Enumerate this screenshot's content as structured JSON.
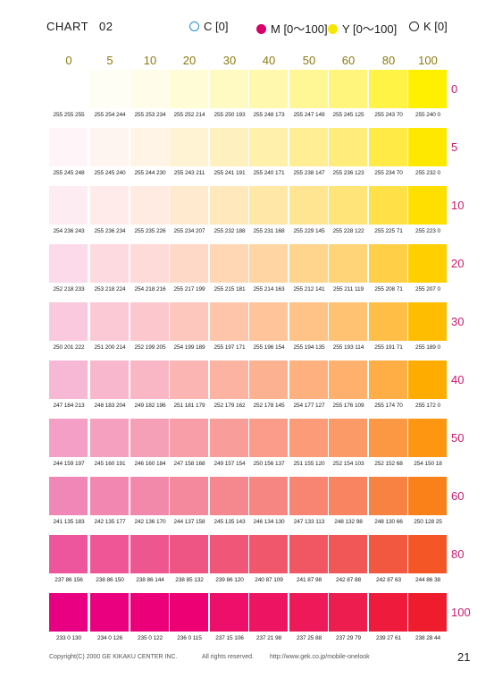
{
  "header": {
    "chart_label": "CHART",
    "chart_number": "02",
    "legend": [
      {
        "name": "cyan",
        "label": "C [0]",
        "color": "#1e8fd8",
        "filled": false
      },
      {
        "name": "magenta",
        "label": "M [0〜100]",
        "color": "#d9006c",
        "filled": true
      },
      {
        "name": "yellow",
        "label": "Y [0〜100]",
        "color": "#f7e600",
        "filled": true
      },
      {
        "name": "black",
        "label": "K [0]",
        "color": "#222222",
        "filled": false
      }
    ]
  },
  "columns": [
    "0",
    "5",
    "10",
    "20",
    "30",
    "40",
    "50",
    "60",
    "80",
    "100"
  ],
  "rows": [
    {
      "label": "0",
      "cells": [
        "255 255 255",
        "255 254 244",
        "255 253 234",
        "255 252 214",
        "255 250 193",
        "255 248 173",
        "255 247 149",
        "255 245 125",
        "255 243 70",
        "255 240 0"
      ]
    },
    {
      "label": "5",
      "cells": [
        "255 245 248",
        "255 245 240",
        "255 244 230",
        "255 243 211",
        "255 241 191",
        "255 240 171",
        "255 238 147",
        "255 236 123",
        "255 234 70",
        "255 232 0"
      ]
    },
    {
      "label": "10",
      "cells": [
        "254 236 243",
        "255 236 234",
        "255 235 226",
        "255 234 207",
        "255 232 188",
        "255 231 168",
        "255 229 145",
        "255 228 122",
        "255 225 71",
        "255 223 0"
      ]
    },
    {
      "label": "20",
      "cells": [
        "252 218 233",
        "253 218 224",
        "254 218 216",
        "255 217 199",
        "255 215 181",
        "255 214 163",
        "255 212 141",
        "255 211 119",
        "255 208 71",
        "255 207 0"
      ]
    },
    {
      "label": "30",
      "cells": [
        "250 201 222",
        "251 200 214",
        "252 199 205",
        "254 199 189",
        "255 197 171",
        "255 196 154",
        "255 194 135",
        "255 193 114",
        "255 191 71",
        "255 189 0"
      ]
    },
    {
      "label": "40",
      "cells": [
        "247 184 213",
        "248 183 204",
        "249 182 196",
        "251 181 179",
        "252 179 162",
        "252 178 145",
        "254 177 127",
        "255 176 109",
        "255 174 70",
        "255 172 0"
      ]
    },
    {
      "label": "50",
      "cells": [
        "244 159 197",
        "245 160 191",
        "246 160 184",
        "247 158 168",
        "249 157 154",
        "250 156 137",
        "251 155 120",
        "252 154 103",
        "252 152 68",
        "254 150 18"
      ]
    },
    {
      "label": "60",
      "cells": [
        "241 135 183",
        "242 135 177",
        "242 136 170",
        "244 137 158",
        "245 135 143",
        "246 134 130",
        "247 133 113",
        "248 132 98",
        "248 130 66",
        "250 128 25"
      ]
    },
    {
      "label": "80",
      "cells": [
        "237 86 156",
        "238 86 150",
        "238 86 144",
        "238 85 132",
        "239 86 120",
        "240 87 109",
        "241 87 98",
        "242 87 88",
        "242 87 63",
        "244 86 38"
      ]
    },
    {
      "label": "100",
      "cells": [
        "233 0 130",
        "234 0 126",
        "235 0 122",
        "236 0 115",
        "237 15 106",
        "237 21 98",
        "237 25 88",
        "237 29 79",
        "239 27 61",
        "238 28 44"
      ]
    }
  ],
  "footer": {
    "copyright": "Copyright(C) 2000 GE KIKAKU CENTER INC.",
    "rights": "All rights reserved.",
    "url": "http://www.gek.co.jp/mobile-onelook",
    "page_number": "21"
  }
}
